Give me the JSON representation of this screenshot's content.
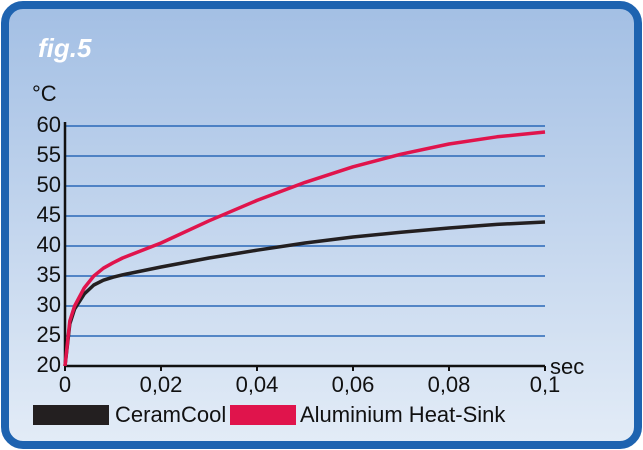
{
  "chart_data": {
    "type": "line",
    "title": "fig.5",
    "ylabel": "°C",
    "xlabel": "sec",
    "x": [
      0,
      0.001,
      0.002,
      0.004,
      0.006,
      0.008,
      0.01,
      0.012,
      0.02,
      0.03,
      0.04,
      0.05,
      0.06,
      0.07,
      0.08,
      0.09,
      0.1
    ],
    "series": [
      {
        "name": "CeramCool",
        "color": "#231f20",
        "values": [
          20,
          27,
          29.5,
          32,
          33.5,
          34.3,
          34.8,
          35.2,
          36.5,
          38,
          39.3,
          40.5,
          41.5,
          42.3,
          43,
          43.6,
          44
        ]
      },
      {
        "name": "Aluminium Heat-Sink",
        "color": "#e0144c",
        "values": [
          20,
          27.5,
          30,
          33,
          35,
          36.3,
          37.2,
          38,
          40.5,
          44.2,
          47.6,
          50.6,
          53.2,
          55.3,
          57,
          58.2,
          59
        ]
      }
    ],
    "xlim": [
      0,
      0.1
    ],
    "xticks": [
      0,
      {
        "value": 0.02,
        "label": "0,02"
      },
      {
        "value": 0.04,
        "label": "0,04"
      },
      {
        "value": 0.06,
        "label": "0,06"
      },
      {
        "value": 0.08,
        "label": "0,08"
      },
      {
        "value": 0.1,
        "label": "0,1"
      }
    ],
    "ylim": [
      20,
      60
    ],
    "yticks": [
      20,
      25,
      30,
      35,
      40,
      45,
      50,
      55,
      60
    ],
    "grid": true,
    "legend": "bottom"
  }
}
